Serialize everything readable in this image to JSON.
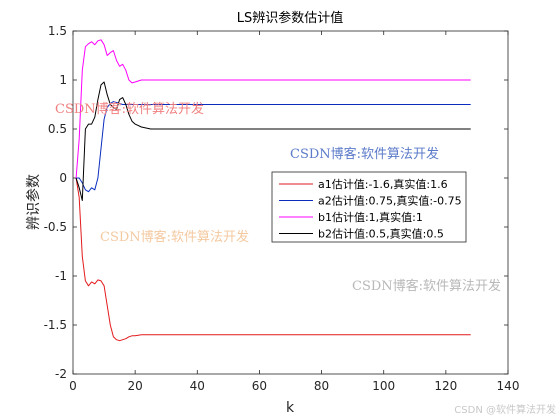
{
  "chart_data": {
    "type": "line",
    "title": "LS辨识参数估计值",
    "xlabel": "k",
    "ylabel": "辨识参数",
    "xlim": [
      0,
      140
    ],
    "ylim": [
      -2,
      1.5
    ],
    "xticks": [
      0,
      20,
      40,
      60,
      80,
      100,
      120,
      140
    ],
    "yticks": [
      -2,
      -1.5,
      -1,
      -0.5,
      0,
      0.5,
      1,
      1.5
    ],
    "xtick_labels": [
      "0",
      "20",
      "40",
      "60",
      "80",
      "100",
      "120",
      "140"
    ],
    "ytick_labels": [
      "-2",
      "-1.5",
      "-1",
      "-0.5",
      "0",
      "0.5",
      "1",
      "1.5"
    ],
    "grid": false,
    "legend_position": "center-right",
    "series": [
      {
        "name": "a1估计值:-1.6,真实值:1.6",
        "color": "#e31a1c",
        "points": [
          [
            1,
            0
          ],
          [
            2,
            -0.2
          ],
          [
            3,
            -0.8
          ],
          [
            4,
            -1.05
          ],
          [
            5,
            -1.1
          ],
          [
            6,
            -1.06
          ],
          [
            7,
            -1.08
          ],
          [
            8,
            -1.04
          ],
          [
            9,
            -1.05
          ],
          [
            10,
            -1.1
          ],
          [
            11,
            -1.3
          ],
          [
            12,
            -1.5
          ],
          [
            13,
            -1.62
          ],
          [
            14,
            -1.65
          ],
          [
            15,
            -1.66
          ],
          [
            16,
            -1.65
          ],
          [
            17,
            -1.64
          ],
          [
            18,
            -1.62
          ],
          [
            19,
            -1.61
          ],
          [
            20,
            -1.61
          ],
          [
            22,
            -1.6
          ],
          [
            25,
            -1.6
          ],
          [
            30,
            -1.6
          ],
          [
            128,
            -1.6
          ]
        ]
      },
      {
        "name": "a2估计值:0.75,真实值:-0.75",
        "color": "#0b2dbf",
        "points": [
          [
            1,
            0
          ],
          [
            2,
            0
          ],
          [
            3,
            -0.05
          ],
          [
            4,
            -0.12
          ],
          [
            5,
            -0.14
          ],
          [
            6,
            -0.1
          ],
          [
            7,
            -0.12
          ],
          [
            8,
            0.0
          ],
          [
            9,
            0.3
          ],
          [
            10,
            0.6
          ],
          [
            11,
            0.72
          ],
          [
            12,
            0.76
          ],
          [
            13,
            0.78
          ],
          [
            14,
            0.77
          ],
          [
            15,
            0.76
          ],
          [
            16,
            0.75
          ],
          [
            18,
            0.75
          ],
          [
            20,
            0.75
          ],
          [
            128,
            0.75
          ]
        ]
      },
      {
        "name": "b1估计值:1,真实值:1",
        "color": "#ff00ff",
        "points": [
          [
            1,
            0
          ],
          [
            2,
            0.4
          ],
          [
            3,
            1.1
          ],
          [
            4,
            1.34
          ],
          [
            5,
            1.37
          ],
          [
            6,
            1.39
          ],
          [
            7,
            1.36
          ],
          [
            8,
            1.4
          ],
          [
            9,
            1.41
          ],
          [
            10,
            1.36
          ],
          [
            11,
            1.25
          ],
          [
            12,
            1.28
          ],
          [
            13,
            1.3
          ],
          [
            14,
            1.2
          ],
          [
            15,
            1.14
          ],
          [
            16,
            1.16
          ],
          [
            17,
            1.1
          ],
          [
            18,
            1.0
          ],
          [
            19,
            0.97
          ],
          [
            20,
            0.98
          ],
          [
            22,
            1.0
          ],
          [
            25,
            1.0
          ],
          [
            128,
            1.0
          ]
        ]
      },
      {
        "name": "b2估计值:0.5,真实值:0.5",
        "color": "#000000",
        "points": [
          [
            1,
            0
          ],
          [
            2,
            -0.1
          ],
          [
            3,
            -0.23
          ],
          [
            4,
            0.5
          ],
          [
            5,
            0.55
          ],
          [
            6,
            0.55
          ],
          [
            7,
            0.62
          ],
          [
            8,
            0.8
          ],
          [
            9,
            0.95
          ],
          [
            10,
            0.98
          ],
          [
            11,
            0.85
          ],
          [
            12,
            0.75
          ],
          [
            13,
            0.72
          ],
          [
            14,
            0.7
          ],
          [
            15,
            0.8
          ],
          [
            16,
            0.82
          ],
          [
            17,
            0.75
          ],
          [
            18,
            0.65
          ],
          [
            19,
            0.58
          ],
          [
            20,
            0.55
          ],
          [
            22,
            0.52
          ],
          [
            25,
            0.5
          ],
          [
            128,
            0.5
          ]
        ]
      }
    ]
  },
  "watermarks": [
    {
      "text": "CSDN博客:软件算法开发",
      "color": "#f08080"
    },
    {
      "text": "CSDN博客:软件算法开发",
      "color": "#5b7bc9"
    },
    {
      "text": "CSDN博客:软件算法开发",
      "color": "#f4c9a0"
    },
    {
      "text": "CSDN博客:软件算法开发",
      "color": "#b8b8b8"
    },
    {
      "text": "CSDN @软件算法开发",
      "color": "#c8c8c8"
    }
  ]
}
